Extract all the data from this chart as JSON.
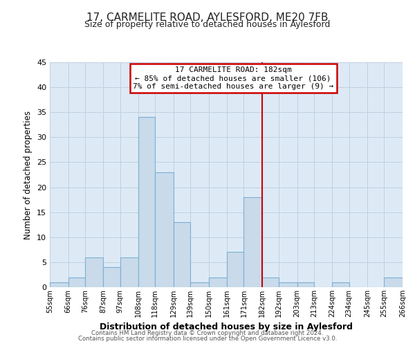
{
  "title": "17, CARMELITE ROAD, AYLESFORD, ME20 7FB",
  "subtitle": "Size of property relative to detached houses in Aylesford",
  "xlabel": "Distribution of detached houses by size in Aylesford",
  "ylabel": "Number of detached properties",
  "bar_color": "#c9daea",
  "bar_edge_color": "#7bafd4",
  "background_color": "#ffffff",
  "ax_background_color": "#ddeaf6",
  "grid_color": "#c0d0e0",
  "bins": [
    55,
    66,
    76,
    87,
    97,
    108,
    118,
    129,
    139,
    150,
    161,
    171,
    182,
    192,
    203,
    213,
    224,
    234,
    245,
    255,
    266
  ],
  "counts": [
    1,
    2,
    6,
    4,
    6,
    34,
    23,
    13,
    1,
    2,
    7,
    18,
    2,
    1,
    1,
    0,
    1,
    0,
    0,
    2
  ],
  "tick_labels": [
    "55sqm",
    "66sqm",
    "76sqm",
    "87sqm",
    "97sqm",
    "108sqm",
    "118sqm",
    "129sqm",
    "139sqm",
    "150sqm",
    "161sqm",
    "171sqm",
    "182sqm",
    "192sqm",
    "203sqm",
    "213sqm",
    "224sqm",
    "234sqm",
    "245sqm",
    "255sqm",
    "266sqm"
  ],
  "vline_x": 182,
  "vline_color": "#cc0000",
  "annotation_title": "17 CARMELITE ROAD: 182sqm",
  "annotation_line1": "← 85% of detached houses are smaller (106)",
  "annotation_line2": "7% of semi-detached houses are larger (9) →",
  "annotation_box_color": "#ffffff",
  "annotation_box_edge_color": "#cc0000",
  "ylim": [
    0,
    45
  ],
  "yticks": [
    0,
    5,
    10,
    15,
    20,
    25,
    30,
    35,
    40,
    45
  ],
  "footer1": "Contains HM Land Registry data © Crown copyright and database right 2024.",
  "footer2": "Contains public sector information licensed under the Open Government Licence v3.0."
}
